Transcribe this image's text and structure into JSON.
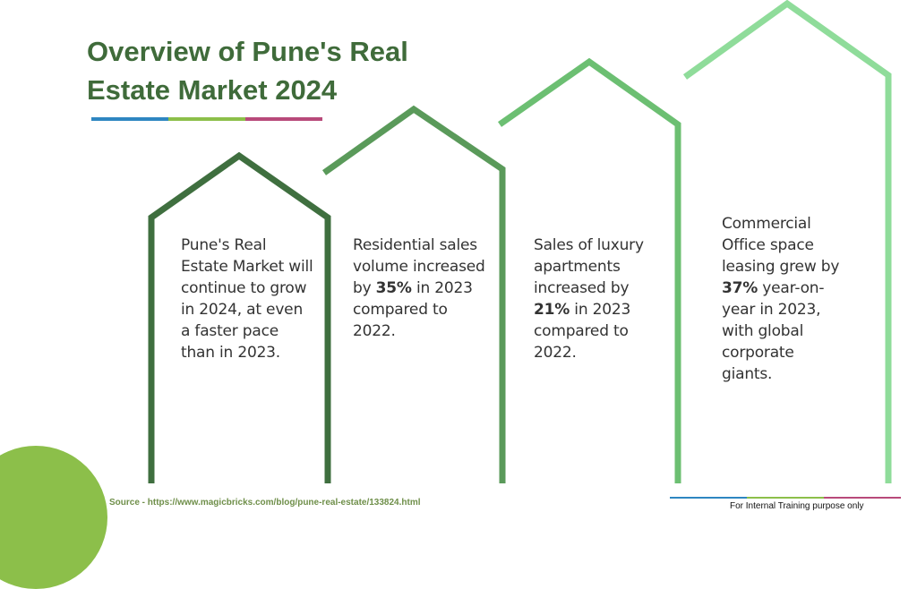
{
  "title": "Overview of Pune's Real Estate Market 2024",
  "accent_colors": [
    "#2e86c1",
    "#8cbf4a",
    "#b84a7a"
  ],
  "house_colors": [
    "#3f6f3f",
    "#5a9a5a",
    "#6cbf72",
    "#8fdc9a"
  ],
  "cards": [
    {
      "pre": "Pune's Real Estate Market will continue to grow in 2024, at even a faster pace than in 2023.",
      "highlight": "",
      "post": ""
    },
    {
      "pre": "Residential sales volume increased by ",
      "highlight": "35%",
      "post": " in 2023 compared to 2022."
    },
    {
      "pre": "Sales of luxury apartments increased by ",
      "highlight": "21%",
      "post": " in 2023 compared to 2022."
    },
    {
      "pre": "Commercial Office space leasing grew by ",
      "highlight": "37%",
      "post": " year-on-year in 2023, with global corporate giants."
    }
  ],
  "source": "Source - https://www.magicbricks.com/blog/pune-real-estate/133824.html",
  "footer_note": "For Internal Training purpose only"
}
